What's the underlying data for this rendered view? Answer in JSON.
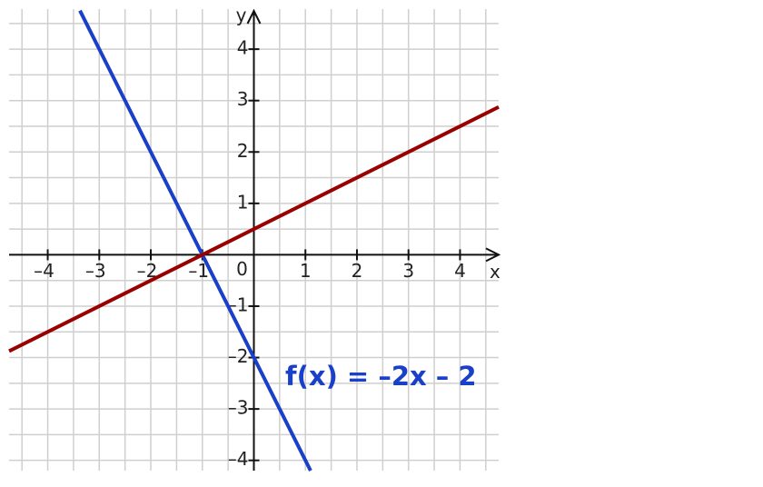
{
  "chart_data": {
    "type": "line",
    "x_label": "x",
    "y_label": "y",
    "xlim": [
      -4.75,
      4.75
    ],
    "ylim": [
      -4.2,
      4.78
    ],
    "xticks": [
      {
        "value": -4,
        "label": "–4"
      },
      {
        "value": -3,
        "label": "–3"
      },
      {
        "value": -2,
        "label": "–2"
      },
      {
        "value": -1,
        "label": "–1"
      },
      0,
      1,
      2,
      3,
      4
    ],
    "yticks": [
      {
        "value": -4,
        "label": "–4"
      },
      {
        "value": -3,
        "label": "–3"
      },
      {
        "value": -2,
        "label": "–2"
      },
      {
        "value": -1,
        "label": "–1"
      },
      1,
      2,
      3,
      4
    ],
    "grid": true,
    "series": [
      {
        "color": "#1a3fc8",
        "x": [
          -3.375,
          1.1
        ],
        "values": [
          4.75,
          -4.2
        ]
      },
      {
        "color": "#990000",
        "x": [
          -4.75,
          4.75
        ],
        "values": [
          -1.875,
          2.875
        ]
      }
    ],
    "annotations": [
      {
        "text": "f(x) = –2x – 2",
        "color": "#1a3fc8"
      }
    ]
  }
}
